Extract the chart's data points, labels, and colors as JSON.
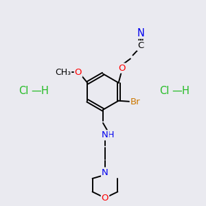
{
  "background_color": "#eaeaf0",
  "atom_colors": {
    "C": "#000000",
    "N": "#0000ee",
    "O": "#ff0000",
    "Br": "#cc7700",
    "Cl": "#22bb22",
    "H": "#22bb22"
  },
  "bond_lw": 1.4,
  "font_size": 9.5
}
